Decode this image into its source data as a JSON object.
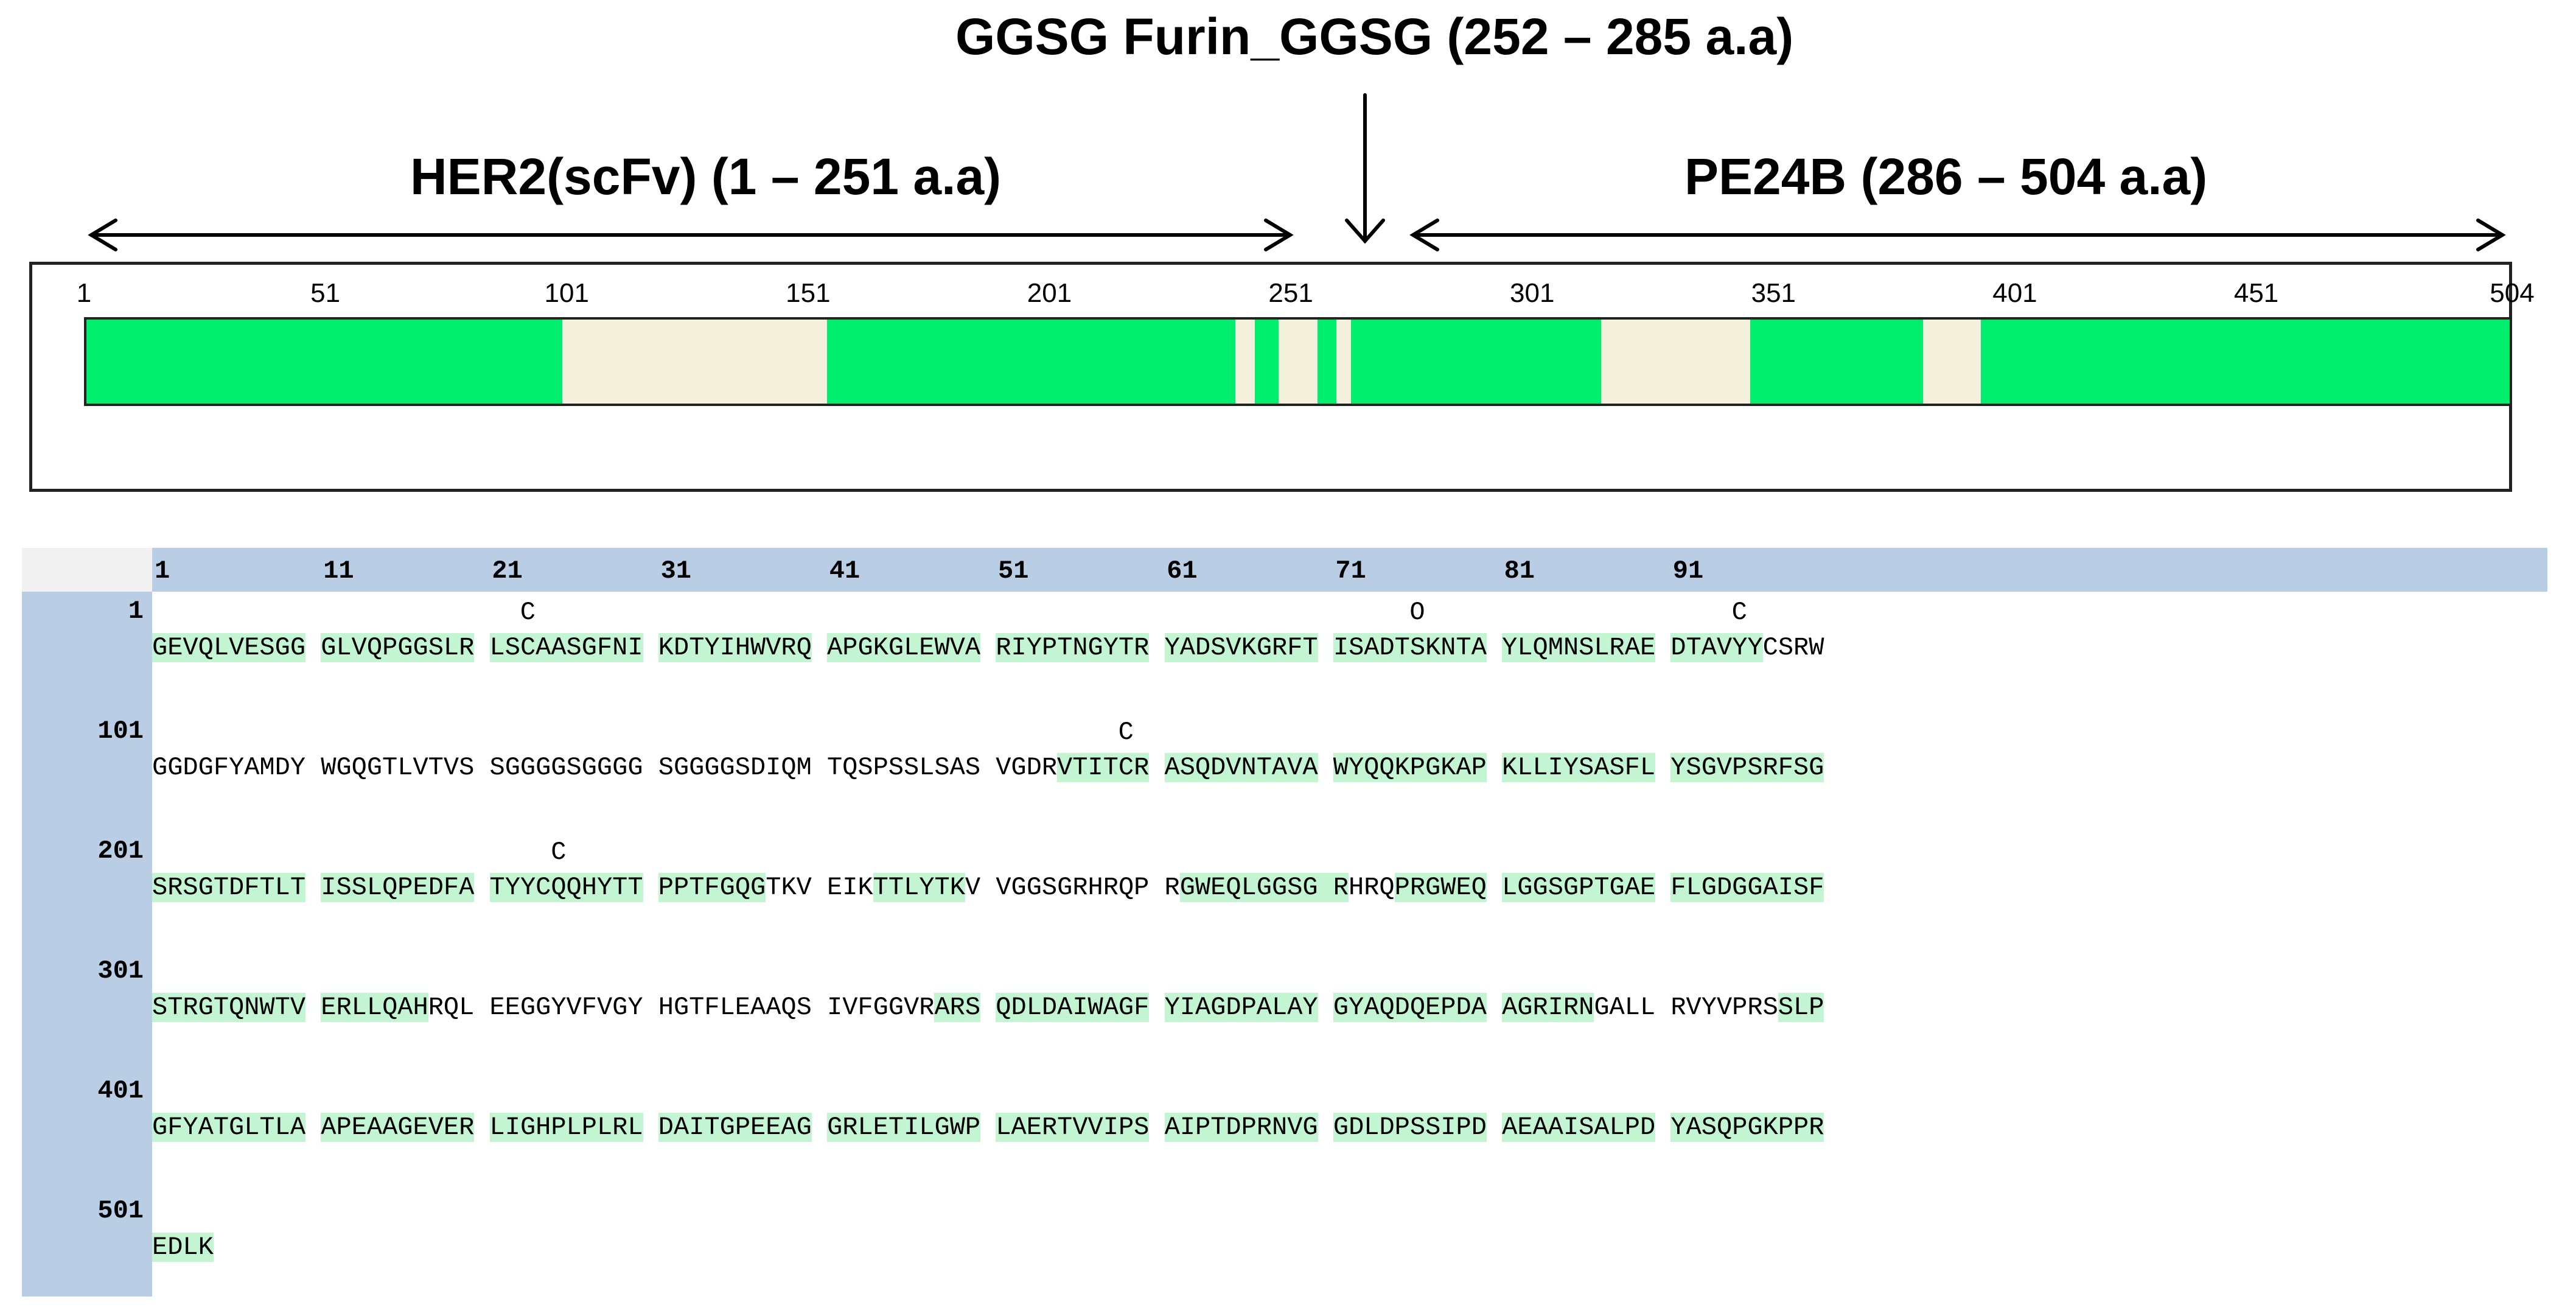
{
  "titles": {
    "linker": "GGSG  Furin_GGSG (252 – 285 a.a)",
    "her2": "HER2(scFv) (1 – 251 a.a)",
    "pe24b": "PE24B (286 – 504 a.a)"
  },
  "domains": [
    {
      "name": "HER2(scFv)",
      "start": 1,
      "end": 251
    },
    {
      "name": "GGSG  Furin_GGSG",
      "start": 252,
      "end": 285
    },
    {
      "name": "PE24B",
      "start": 286,
      "end": 504
    }
  ],
  "map": {
    "length": 504,
    "ticks": [
      "1",
      "51",
      "101",
      "151",
      "201",
      "251",
      "301",
      "351",
      "401",
      "451",
      "504"
    ],
    "unstructured_regions": [
      [
        100,
        155
      ],
      [
        240,
        244
      ],
      [
        249,
        257
      ],
      [
        261,
        264
      ],
      [
        316,
        347
      ],
      [
        383,
        395
      ]
    ],
    "colors": {
      "structured": "#00ee6e",
      "unstructured": "#f3f0dc"
    }
  },
  "sequence_view": {
    "column_numbers": [
      "1",
      "11",
      "21",
      "31",
      "41",
      "51",
      "61",
      "71",
      "81",
      "91"
    ],
    "row_numbers": [
      "1",
      "101",
      "201",
      "301",
      "401",
      "501"
    ],
    "rows": [
      {
        "text": "GEVQLVESGG GLVQPGGSLR LSCAASGFNI KDTYIHWVRQ APGKGLEWVA RIYPTNGYTR YADSVKGRFT ISADTSKNTA YLQMNSLRAE DTAVYYCSRW",
        "highlight": [
          [
            0,
            10
          ],
          [
            11,
            21
          ],
          [
            22,
            32
          ],
          [
            33,
            43
          ],
          [
            44,
            54
          ],
          [
            55,
            65
          ],
          [
            66,
            76
          ],
          [
            77,
            87
          ],
          [
            88,
            98
          ],
          [
            99,
            105
          ]
        ]
      },
      {
        "text": "GGDGFYAMDY WGQGTLVTVS SGGGGSGGGG SGGGGSDIQM TQSPSSLSAS VGDRVTITCR ASQDVNTAVA WYQQKPGKAP KLLIYSASFL YSGVPSRFSG",
        "highlight": [
          [
            59,
            65
          ],
          [
            66,
            76
          ],
          [
            77,
            87
          ],
          [
            88,
            98
          ],
          [
            99,
            109
          ]
        ]
      },
      {
        "text": "SRSGTDFTLT ISSLQPEDFA TYYCQQHYTT PPTFGQGTKV EIKTTLYTKV VGGSGRHRQP RGWEQLGGSG RHRQPRGWEQ LGGSGPTGAE FLGDGGAISF",
        "highlight": [
          [
            0,
            10
          ],
          [
            11,
            21
          ],
          [
            22,
            32
          ],
          [
            33,
            40
          ],
          [
            47,
            53
          ],
          [
            67,
            78
          ],
          [
            81,
            87
          ],
          [
            88,
            98
          ],
          [
            99,
            109
          ]
        ]
      },
      {
        "text": "STRGTQNWTV ERLLQAHRQL EEGGYVFVGY HGTFLEAAQS IVFGGVRARS QDLDAIWAGF YIAGDPALAY GYAQDQEPDA AGRIRNGALL RVYVPRSSLP",
        "highlight": [
          [
            0,
            10
          ],
          [
            11,
            18
          ],
          [
            51,
            54
          ],
          [
            55,
            65
          ],
          [
            66,
            76
          ],
          [
            77,
            87
          ],
          [
            88,
            94
          ],
          [
            106,
            109
          ]
        ]
      },
      {
        "text": "GFYATGLTLA APEAAGEVER LIGHPLPLRL DAITGPEEAG GRLETILGWP LAERTVVIPS AIPTDPRNVG GDLDPSSIPD AEAAISALPD YASQPGKPPR",
        "highlight": [
          [
            0,
            10
          ],
          [
            11,
            21
          ],
          [
            22,
            32
          ],
          [
            33,
            43
          ],
          [
            44,
            54
          ],
          [
            55,
            65
          ],
          [
            66,
            76
          ],
          [
            77,
            87
          ],
          [
            88,
            98
          ],
          [
            99,
            109
          ]
        ]
      },
      {
        "text": "EDLK",
        "highlight": [
          [
            0,
            4
          ]
        ]
      }
    ],
    "markers": [
      {
        "label": "C",
        "row": 0,
        "col": 24
      },
      {
        "label": "O",
        "row": 0,
        "col": 82
      },
      {
        "label": "C",
        "row": 0,
        "col": 103
      },
      {
        "label": "C",
        "row": 1,
        "col": 63
      },
      {
        "label": "C",
        "row": 2,
        "col": 26
      }
    ]
  }
}
